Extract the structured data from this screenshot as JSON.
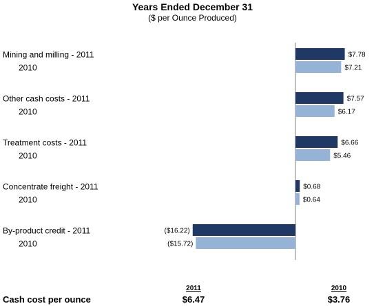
{
  "chart_data": {
    "type": "bar",
    "orientation": "horizontal",
    "title": "Years Ended December 31",
    "subtitle": "($ per Ounce Produced)",
    "categories": [
      {
        "label_2011": "Mining and milling - 2011",
        "label_2010": "2010",
        "value_2011": 7.78,
        "text_2011": "$7.78",
        "value_2010": 7.21,
        "text_2010": "$7.21"
      },
      {
        "label_2011": "Other cash costs - 2011",
        "label_2010": "2010",
        "value_2011": 7.57,
        "text_2011": "$7.57",
        "value_2010": 6.17,
        "text_2010": "$6.17"
      },
      {
        "label_2011": "Treatment costs - 2011",
        "label_2010": "2010",
        "value_2011": 6.66,
        "text_2011": "$6.66",
        "value_2010": 5.46,
        "text_2010": "$5.46"
      },
      {
        "label_2011": "Concentrate freight - 2011",
        "label_2010": "2010",
        "value_2011": 0.68,
        "text_2011": "$0.68",
        "value_2010": 0.64,
        "text_2010": "$0.64"
      },
      {
        "label_2011": "By-product credit - 2011",
        "label_2010": "2010",
        "value_2011": -16.22,
        "text_2011": "($16.22)",
        "value_2010": -15.72,
        "text_2010": "($15.72)"
      }
    ],
    "colors": {
      "2011": "#1f3864",
      "2010": "#95b3d7"
    },
    "xlim": [
      -17,
      8
    ],
    "grid": false
  },
  "summary": {
    "label": "Cash cost per ounce",
    "col_2011_header": "2011",
    "col_2011_value": "$6.47",
    "col_2010_header": "2010",
    "col_2010_value": "$3.76"
  }
}
